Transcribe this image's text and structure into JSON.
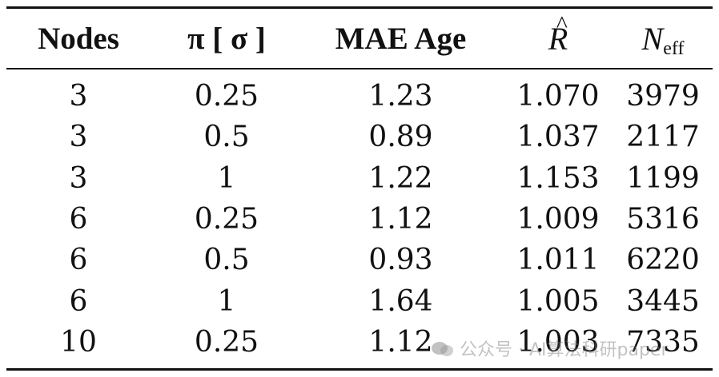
{
  "table": {
    "headers": {
      "nodes": "Nodes",
      "pi_sigma": "π [ σ ]",
      "mae_age": "MAE Age",
      "r_hat": "R",
      "r_hat_accent": "^",
      "n_eff_base": "N",
      "n_eff_sub": "eff"
    },
    "rows": [
      {
        "nodes": "3",
        "pi": "0.25",
        "mae": "1.23",
        "r": "1.070",
        "n": "3979"
      },
      {
        "nodes": "3",
        "pi": "0.5",
        "mae": "0.89",
        "r": "1.037",
        "n": "2117"
      },
      {
        "nodes": "3",
        "pi": "1",
        "mae": "1.22",
        "r": "1.153",
        "n": "1199"
      },
      {
        "nodes": "6",
        "pi": "0.25",
        "mae": "1.12",
        "r": "1.009",
        "n": "5316"
      },
      {
        "nodes": "6",
        "pi": "0.5",
        "mae": "0.93",
        "r": "1.011",
        "n": "6220"
      },
      {
        "nodes": "6",
        "pi": "1",
        "mae": "1.64",
        "r": "1.005",
        "n": "3445"
      },
      {
        "nodes": "10",
        "pi": "0.25",
        "mae": "1.12",
        "r": "1.003",
        "n": "7335"
      }
    ]
  },
  "watermark": {
    "icon": "wechat-icon",
    "text": "公众号 · AI算法科研paper"
  }
}
